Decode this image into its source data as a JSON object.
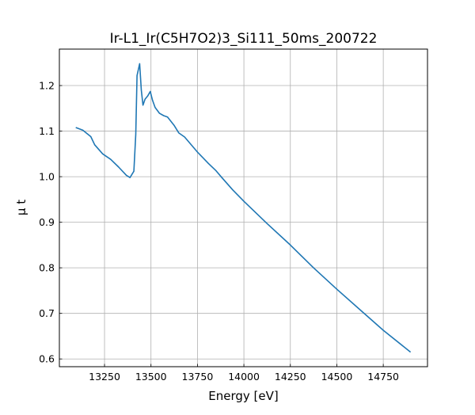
{
  "chart_data": {
    "type": "line",
    "title": "Ir-L1_Ir(C5H7O2)3_Si111_50ms_200722",
    "xlabel": "Energy [eV]",
    "ylabel": "μ t",
    "xlim": [
      13007,
      14988
    ],
    "ylim": [
      0.583,
      1.28
    ],
    "xticks": [
      13250,
      13500,
      13750,
      14000,
      14250,
      14500,
      14750
    ],
    "yticks": [
      0.6,
      0.7,
      0.8,
      0.9,
      1.0,
      1.1,
      1.2
    ],
    "xtick_labels": [
      "13250",
      "13500",
      "13750",
      "14000",
      "14250",
      "14500",
      "14750"
    ],
    "ytick_labels": [
      "0.6",
      "0.7",
      "0.8",
      "0.9",
      "1.0",
      "1.1",
      "1.2"
    ],
    "grid": true,
    "series": [
      {
        "name": "mu_t",
        "color": "#1f77b4",
        "x": [
          13095,
          13133,
          13176,
          13197,
          13240,
          13283,
          13326,
          13368,
          13387,
          13408,
          13418,
          13425,
          13439,
          13448,
          13457,
          13468,
          13482,
          13496,
          13508,
          13522,
          13546,
          13568,
          13589,
          13624,
          13650,
          13681,
          13750,
          13809,
          13850,
          13881,
          13940,
          14000,
          14125,
          14250,
          14375,
          14500,
          14625,
          14750,
          14897
        ],
        "y": [
          1.108,
          1.102,
          1.088,
          1.07,
          1.05,
          1.038,
          1.021,
          1.003,
          0.998,
          1.012,
          1.093,
          1.222,
          1.248,
          1.19,
          1.157,
          1.17,
          1.177,
          1.187,
          1.168,
          1.152,
          1.139,
          1.134,
          1.131,
          1.113,
          1.096,
          1.087,
          1.054,
          1.029,
          1.013,
          0.998,
          0.971,
          0.946,
          0.897,
          0.85,
          0.8,
          0.753,
          0.708,
          0.663,
          0.615
        ]
      }
    ]
  }
}
